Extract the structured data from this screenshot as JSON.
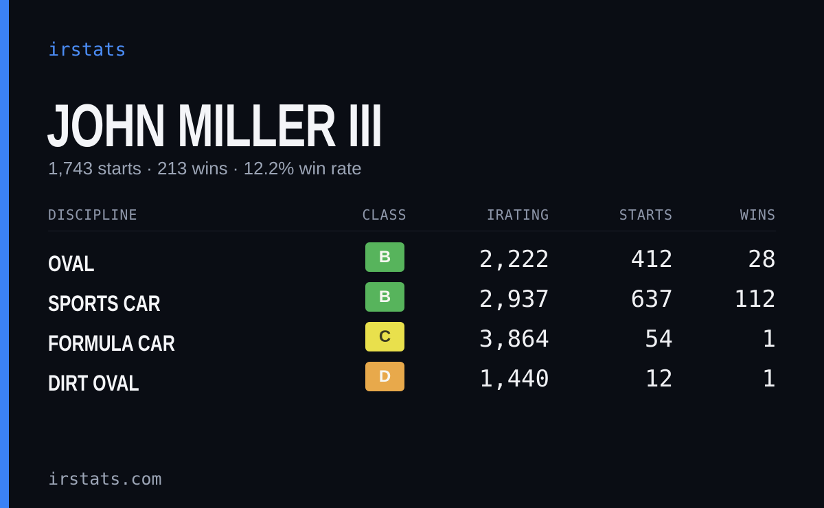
{
  "brand": "irstats",
  "name": "JOHN MILLER III",
  "summary": "1,743 starts · 213 wins · 12.2% win rate",
  "table": {
    "headers": [
      "DISCIPLINE",
      "CLASS",
      "IRATING",
      "STARTS",
      "WINS"
    ],
    "rows": [
      [
        "OVAL",
        "B",
        "2,222",
        "412",
        "28"
      ],
      [
        "SPORTS CAR",
        "B",
        "2,937",
        "637",
        "112"
      ],
      [
        "FORMULA CAR",
        "C",
        "3,864",
        "54",
        "1"
      ],
      [
        "DIRT OVAL",
        "D",
        "1,440",
        "12",
        "1"
      ]
    ],
    "class_colors": {
      "B": "#57b45c",
      "C": "#e9e04c",
      "D": "#e8a94b"
    }
  },
  "footer": "irstats.com"
}
